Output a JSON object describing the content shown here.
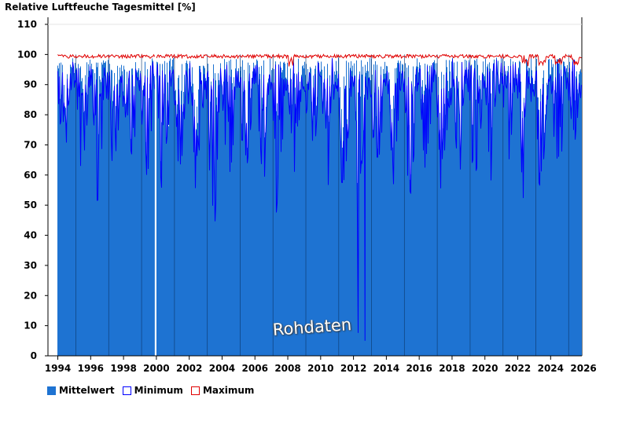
{
  "chart_data": {
    "type": "bar",
    "title": "Relative Luftfeuche Tagesmittel [%]",
    "xlim": [
      1993.4,
      2025.9
    ],
    "ylim": [
      0,
      112
    ],
    "yticks": [
      0,
      10,
      20,
      30,
      40,
      50,
      60,
      70,
      80,
      90,
      100,
      110
    ],
    "xticks": [
      1994,
      1996,
      1998,
      2000,
      2002,
      2004,
      2006,
      2008,
      2010,
      2012,
      2014,
      2016,
      2018,
      2020,
      2022,
      2024,
      2026
    ],
    "year_lines": [
      1995.1,
      1997.1,
      1999.1,
      2001.1,
      2003.1,
      2005.1,
      2007.1,
      2009.1,
      2011.1,
      2013.1,
      2015.1,
      2017.1,
      2019.1,
      2021.1,
      2023.1,
      2025.1
    ],
    "gap_date": 1999.95,
    "series": [
      {
        "name": "Mittelwert",
        "color": "#1e73d2",
        "monthly_min": [
          [
            1994,
            80,
            76,
            70,
            66,
            70,
            64,
            68,
            72,
            78,
            86,
            88,
            86
          ],
          [
            1995,
            84,
            80,
            72,
            64,
            62,
            66,
            60,
            66,
            74,
            82,
            86,
            88
          ],
          [
            1996,
            86,
            78,
            70,
            54,
            50,
            58,
            62,
            66,
            76,
            84,
            86,
            84
          ],
          [
            1997,
            84,
            80,
            68,
            62,
            66,
            70,
            64,
            70,
            76,
            82,
            88,
            86
          ],
          [
            1998,
            84,
            78,
            72,
            66,
            62,
            66,
            70,
            72,
            78,
            84,
            86,
            88
          ],
          [
            1999,
            86,
            80,
            74,
            64,
            60,
            62,
            66,
            70,
            74,
            84,
            86,
            86
          ],
          [
            2000,
            84,
            74,
            60,
            55,
            62,
            66,
            70,
            70,
            74,
            82,
            86,
            86
          ],
          [
            2001,
            84,
            78,
            72,
            62,
            56,
            60,
            66,
            72,
            76,
            84,
            88,
            86
          ],
          [
            2002,
            86,
            82,
            64,
            42,
            52,
            64,
            68,
            68,
            74,
            82,
            88,
            88
          ],
          [
            2003,
            84,
            76,
            58,
            45,
            48,
            36,
            42,
            48,
            62,
            80,
            86,
            86
          ],
          [
            2004,
            84,
            76,
            68,
            52,
            44,
            58,
            62,
            66,
            70,
            82,
            88,
            86
          ],
          [
            2005,
            84,
            78,
            70,
            58,
            56,
            60,
            64,
            68,
            74,
            82,
            88,
            86
          ],
          [
            2006,
            86,
            80,
            74,
            66,
            62,
            62,
            56,
            66,
            72,
            84,
            86,
            88
          ],
          [
            2007,
            84,
            78,
            70,
            47,
            58,
            64,
            66,
            70,
            76,
            84,
            88,
            88
          ],
          [
            2008,
            86,
            80,
            72,
            62,
            58,
            64,
            66,
            70,
            76,
            84,
            88,
            88
          ],
          [
            2009,
            84,
            78,
            66,
            60,
            62,
            64,
            68,
            70,
            72,
            84,
            88,
            86
          ],
          [
            2010,
            86,
            80,
            72,
            60,
            62,
            56,
            60,
            68,
            72,
            82,
            86,
            88
          ],
          [
            2011,
            84,
            78,
            64,
            54,
            56,
            62,
            64,
            68,
            72,
            82,
            86,
            86
          ],
          [
            2012,
            86,
            76,
            46,
            5,
            60,
            64,
            66,
            70,
            74,
            84,
            88,
            86
          ],
          [
            2013,
            84,
            78,
            70,
            56,
            62,
            64,
            58,
            66,
            72,
            84,
            88,
            88
          ],
          [
            2014,
            86,
            80,
            72,
            44,
            56,
            62,
            66,
            70,
            76,
            84,
            88,
            86
          ],
          [
            2015,
            84,
            78,
            68,
            58,
            60,
            52,
            56,
            64,
            72,
            82,
            86,
            86
          ],
          [
            2016,
            84,
            76,
            66,
            62,
            62,
            66,
            68,
            70,
            74,
            84,
            88,
            88
          ],
          [
            2017,
            84,
            78,
            64,
            58,
            58,
            62,
            66,
            70,
            74,
            82,
            86,
            86
          ],
          [
            2018,
            86,
            80,
            68,
            50,
            54,
            58,
            60,
            62,
            70,
            80,
            84,
            86
          ],
          [
            2019,
            84,
            78,
            64,
            44,
            56,
            60,
            64,
            68,
            74,
            82,
            88,
            86
          ],
          [
            2020,
            84,
            80,
            66,
            50,
            56,
            62,
            66,
            68,
            72,
            82,
            86,
            88
          ],
          [
            2021,
            86,
            80,
            72,
            62,
            64,
            66,
            66,
            70,
            74,
            82,
            86,
            86
          ],
          [
            2022,
            84,
            70,
            60,
            42,
            56,
            62,
            62,
            66,
            72,
            82,
            86,
            86
          ],
          [
            2023,
            84,
            78,
            68,
            54,
            60,
            62,
            64,
            68,
            74,
            84,
            88,
            88
          ],
          [
            2024,
            86,
            80,
            70,
            60,
            62,
            64,
            64,
            66,
            70,
            82,
            86,
            86
          ],
          [
            2025,
            84,
            74,
            45,
            62,
            68,
            70,
            72,
            76,
            80,
            84,
            86,
            86
          ]
        ]
      },
      {
        "name": "Minimum",
        "color": "#0000ff"
      },
      {
        "name": "Maximum",
        "color": "#e00000"
      }
    ],
    "watermark": "Rohdaten"
  },
  "legend": {
    "items": [
      {
        "label": "Mittelwert",
        "color": "#1e73d2"
      },
      {
        "label": "Minimum",
        "color": "#0000ff"
      },
      {
        "label": "Maximum",
        "color": "#e00000"
      }
    ]
  }
}
